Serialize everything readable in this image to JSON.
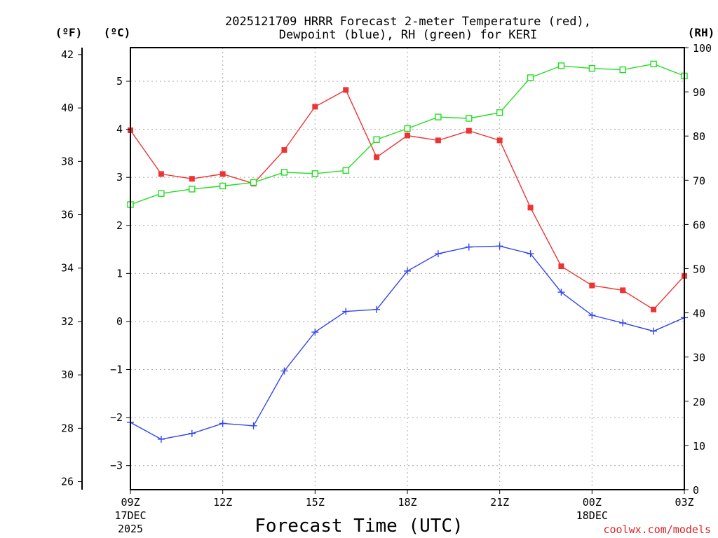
{
  "chart_data": {
    "type": "line",
    "title_line1": "2025121709 HRRR Forecast 2-meter Temperature (red),",
    "title_line2": "Dewpoint (blue), RH (green) for KERI",
    "unit_left_f": "(ºF)",
    "unit_left_c": "(ºC)",
    "unit_right": "(RH)",
    "xlabel": "Forecast Time (UTC)",
    "watermark": "coolwx.com/models",
    "x_hours": [
      0,
      1,
      2,
      3,
      4,
      5,
      6,
      7,
      8,
      9,
      10,
      11,
      12,
      13,
      14,
      15,
      16,
      17,
      18
    ],
    "x_ticks": [
      {
        "hour": 0,
        "label": "09Z",
        "sub1": "17DEC",
        "sub2": "2025"
      },
      {
        "hour": 3,
        "label": "12Z",
        "sub1": "",
        "sub2": ""
      },
      {
        "hour": 6,
        "label": "15Z",
        "sub1": "",
        "sub2": ""
      },
      {
        "hour": 9,
        "label": "18Z",
        "sub1": "",
        "sub2": ""
      },
      {
        "hour": 12,
        "label": "21Z",
        "sub1": "",
        "sub2": ""
      },
      {
        "hour": 15,
        "label": "00Z",
        "sub1": "18DEC",
        "sub2": ""
      },
      {
        "hour": 18,
        "label": "03Z",
        "sub1": "",
        "sub2": ""
      }
    ],
    "celsius_axis": {
      "range": [
        -3.5,
        5.7
      ],
      "ticks": [
        -3,
        -2,
        -1,
        0,
        1,
        2,
        3,
        4,
        5
      ]
    },
    "fahrenheit_axis": {
      "ticks": [
        26,
        28,
        30,
        32,
        34,
        36,
        38,
        40,
        42
      ]
    },
    "rh_axis": {
      "range": [
        0,
        100
      ],
      "ticks": [
        0,
        10,
        20,
        30,
        40,
        50,
        60,
        70,
        80,
        90,
        100
      ]
    },
    "series": [
      {
        "name": "Temperature",
        "color": "#ee3333",
        "marker": "filled-square",
        "axis": "celsius",
        "values": [
          3.98,
          3.07,
          2.97,
          3.07,
          2.87,
          3.57,
          4.47,
          4.82,
          3.42,
          3.87,
          3.77,
          3.97,
          3.77,
          2.37,
          1.15,
          0.75,
          0.65,
          0.25,
          0.95
        ]
      },
      {
        "name": "Dewpoint",
        "color": "#3344ee",
        "marker": "plus",
        "axis": "celsius",
        "values": [
          -2.1,
          -2.45,
          -2.33,
          -2.12,
          -2.17,
          -1.03,
          -0.22,
          0.21,
          0.25,
          1.05,
          1.41,
          1.55,
          1.57,
          1.41,
          0.61,
          0.13,
          -0.03,
          -0.2,
          0.08
        ]
      },
      {
        "name": "RH",
        "color": "#22dd22",
        "marker": "open-square",
        "axis": "rh",
        "values": [
          64.5,
          67,
          68,
          68.7,
          69.5,
          71.8,
          71.5,
          72.2,
          79.2,
          81.7,
          84.3,
          84,
          85.3,
          93.2,
          95.9,
          95.3,
          95,
          96.3,
          93.6
        ]
      }
    ]
  }
}
